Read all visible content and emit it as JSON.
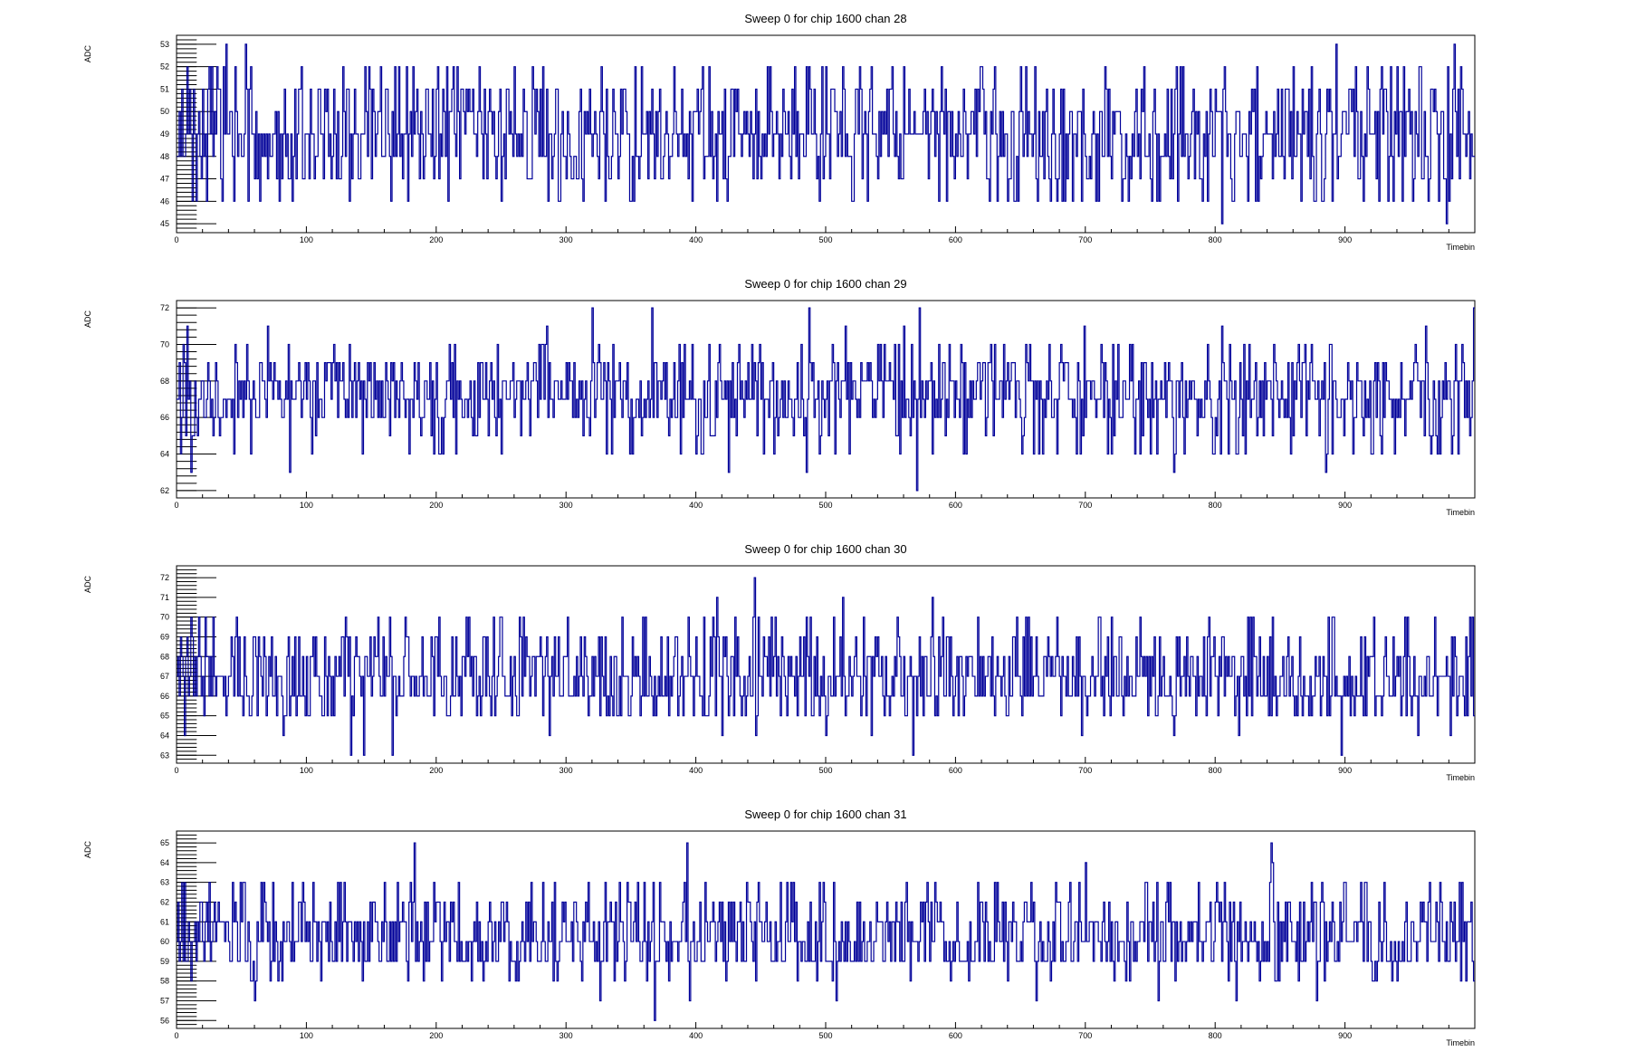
{
  "chart_data": [
    {
      "type": "line",
      "title": "Sweep 0 for chip 1600 chan 28",
      "xlabel": "Timebin",
      "ylabel": "ADC",
      "xlim": [
        0,
        1000
      ],
      "ylim": [
        44.6,
        53.4
      ],
      "x_ticks": [
        0,
        100,
        200,
        300,
        400,
        500,
        600,
        700,
        800,
        900
      ],
      "y_ticks": [
        45,
        46,
        47,
        48,
        49,
        50,
        51,
        52,
        53
      ],
      "series": [
        {
          "color": "#000099",
          "baseline": 49,
          "noise_levels": [
            46,
            47,
            47,
            48,
            48,
            48,
            49,
            49,
            49,
            49,
            50,
            50,
            50,
            51,
            51,
            52
          ],
          "x": [
            0,
            12,
            38,
            44,
            53,
            60,
            70,
            103,
            133,
            168,
            213,
            260,
            330,
            410,
            455,
            520,
            560,
            620,
            640,
            690,
            710,
            750,
            770,
            805,
            830,
            855,
            880,
            893,
            940,
            957,
            978,
            984,
            990,
            999
          ],
          "y": [
            48,
            46,
            53,
            46,
            53,
            47,
            47,
            51,
            46,
            52,
            52,
            52,
            46,
            52,
            52,
            46,
            52,
            52,
            46,
            46,
            46,
            47,
            52,
            45,
            51,
            51,
            51,
            53,
            52,
            52,
            45,
            53,
            51,
            48
          ]
        }
      ]
    },
    {
      "type": "line",
      "title": "Sweep 0 for chip 1600 chan 29",
      "xlabel": "Timebin",
      "ylabel": "ADC",
      "xlim": [
        0,
        1000
      ],
      "ylim": [
        61.6,
        72.4
      ],
      "x_ticks": [
        0,
        100,
        200,
        300,
        400,
        500,
        600,
        700,
        800,
        900
      ],
      "y_ticks": [
        62,
        64,
        66,
        68,
        70,
        72
      ],
      "series": [
        {
          "color": "#000099",
          "baseline": 67,
          "noise_levels": [
            65,
            66,
            66,
            66,
            67,
            67,
            67,
            67,
            68,
            68,
            68,
            68,
            69,
            69,
            70,
            64
          ],
          "x": [
            0,
            8,
            11,
            70,
            87,
            203,
            285,
            320,
            335,
            366,
            388,
            397,
            400,
            425,
            485,
            487,
            515,
            560,
            570,
            572,
            651,
            699,
            768,
            805,
            810,
            885,
            962,
            971,
            985,
            999
          ],
          "y": [
            67,
            71,
            63,
            71,
            63,
            64,
            71,
            72,
            64,
            72,
            64,
            70,
            64,
            63,
            63,
            72,
            71,
            71,
            62,
            72,
            64,
            71,
            63,
            71,
            64,
            63,
            71,
            64,
            70,
            72
          ]
        }
      ]
    },
    {
      "type": "line",
      "title": "Sweep 0 for chip 1600 chan 30",
      "xlabel": "Timebin",
      "ylabel": "ADC",
      "xlim": [
        0,
        1000
      ],
      "ylim": [
        62.6,
        72.6
      ],
      "x_ticks": [
        0,
        100,
        200,
        300,
        400,
        500,
        600,
        700,
        800,
        900
      ],
      "y_ticks": [
        63,
        64,
        65,
        66,
        67,
        68,
        69,
        70,
        71,
        72
      ],
      "series": [
        {
          "color": "#000099",
          "baseline": 67,
          "noise_levels": [
            65,
            66,
            66,
            66,
            67,
            67,
            67,
            67,
            68,
            68,
            68,
            69,
            69,
            70,
            65,
            66
          ],
          "x": [
            0,
            6,
            82,
            134,
            144,
            166,
            244,
            287,
            416,
            420,
            445,
            446,
            500,
            513,
            535,
            567,
            582,
            697,
            768,
            818,
            887,
            897,
            948,
            956,
            981,
            999
          ],
          "y": [
            67,
            64,
            64,
            63,
            63,
            63,
            70,
            64,
            71,
            64,
            72,
            64,
            64,
            71,
            64,
            63,
            71,
            64,
            64,
            64,
            70,
            63,
            70,
            64,
            64,
            65
          ]
        }
      ]
    },
    {
      "type": "line",
      "title": "Sweep 0 for chip 1600 chan 31",
      "xlabel": "Timebin",
      "ylabel": "ADC",
      "xlim": [
        0,
        1000
      ],
      "ylim": [
        55.6,
        65.6
      ],
      "x_ticks": [
        0,
        100,
        200,
        300,
        400,
        500,
        600,
        700,
        800,
        900
      ],
      "y_ticks": [
        56,
        57,
        58,
        59,
        60,
        61,
        62,
        63,
        64,
        65
      ],
      "series": [
        {
          "color": "#000099",
          "baseline": 60,
          "noise_levels": [
            58,
            59,
            59,
            59,
            60,
            60,
            60,
            60,
            61,
            61,
            61,
            62,
            62,
            63,
            59,
            61
          ],
          "x": [
            0,
            60,
            183,
            326,
            368,
            393,
            395,
            508,
            662,
            700,
            756,
            816,
            843,
            844,
            878,
            999
          ],
          "y": [
            60,
            57,
            65,
            57,
            56,
            65,
            57,
            57,
            57,
            64,
            57,
            57,
            65,
            64,
            57,
            58
          ]
        }
      ]
    }
  ]
}
